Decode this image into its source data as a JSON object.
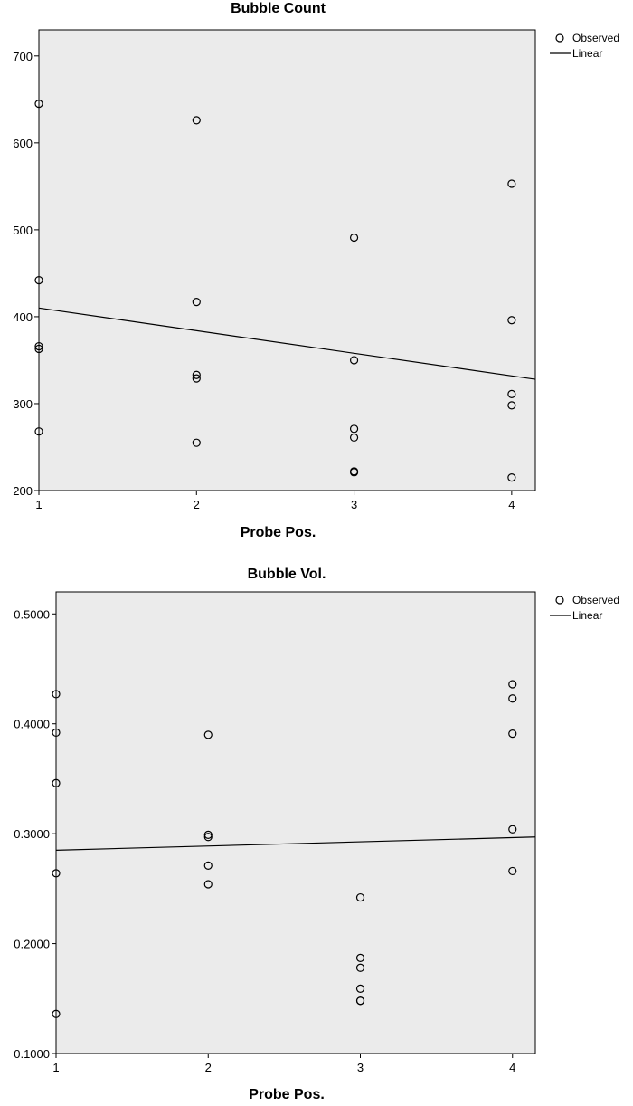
{
  "chart_data": [
    {
      "type": "scatter",
      "title": "Bubble Count",
      "xlabel": "Probe Pos.",
      "ylabel": "",
      "xlim": [
        1,
        4.15
      ],
      "ylim": [
        200,
        730
      ],
      "xticks": [
        1,
        2,
        3,
        4
      ],
      "yticks": [
        200,
        300,
        400,
        500,
        600,
        700
      ],
      "ytick_labels": [
        "200",
        "300",
        "400",
        "500",
        "600",
        "700"
      ],
      "grid": false,
      "legend": {
        "position": "top-right",
        "entries": [
          "Observed",
          "Linear"
        ]
      },
      "series": [
        {
          "name": "Observed",
          "kind": "points",
          "x": [
            1,
            1,
            1,
            1,
            1,
            2,
            2,
            2,
            2,
            2,
            3,
            3,
            3,
            3,
            3,
            3,
            4,
            4,
            4,
            4,
            4
          ],
          "y": [
            645,
            442,
            366,
            363,
            268,
            626,
            417,
            333,
            329,
            255,
            491,
            350,
            271,
            261,
            222,
            221,
            553,
            396,
            311,
            298,
            215
          ]
        },
        {
          "name": "Linear",
          "kind": "line",
          "x": [
            1,
            4.15
          ],
          "y": [
            410,
            328
          ]
        }
      ]
    },
    {
      "type": "scatter",
      "title": "Bubble Vol.",
      "xlabel": "Probe Pos.",
      "ylabel": "",
      "xlim": [
        1,
        4.15
      ],
      "ylim": [
        0.1,
        0.52
      ],
      "xticks": [
        1,
        2,
        3,
        4
      ],
      "yticks": [
        0.1,
        0.2,
        0.3,
        0.4,
        0.5
      ],
      "ytick_labels": [
        "0.1000",
        "0.2000",
        "0.3000",
        "0.4000",
        "0.5000"
      ],
      "grid": false,
      "legend": {
        "position": "top-right",
        "entries": [
          "Observed",
          "Linear"
        ]
      },
      "series": [
        {
          "name": "Observed",
          "kind": "points",
          "x": [
            1,
            1,
            1,
            1,
            1,
            2,
            2,
            2,
            2,
            2,
            3,
            3,
            3,
            3,
            3,
            3,
            4,
            4,
            4,
            4,
            4
          ],
          "y": [
            0.427,
            0.392,
            0.346,
            0.264,
            0.136,
            0.39,
            0.299,
            0.297,
            0.271,
            0.254,
            0.242,
            0.187,
            0.178,
            0.159,
            0.148,
            0.148,
            0.436,
            0.423,
            0.391,
            0.304,
            0.266
          ]
        },
        {
          "name": "Linear",
          "kind": "line",
          "x": [
            1,
            4.15
          ],
          "y": [
            0.285,
            0.297
          ]
        }
      ]
    }
  ]
}
